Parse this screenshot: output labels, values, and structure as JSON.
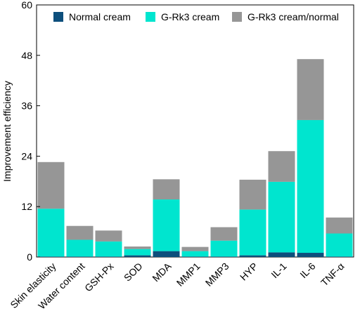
{
  "chart_data": {
    "type": "bar",
    "stacked": true,
    "title": "",
    "xlabel": "",
    "ylabel": "Improvement efficiency",
    "ylim": [
      0,
      60
    ],
    "yticks": [
      0,
      12,
      24,
      36,
      48,
      60
    ],
    "grid": false,
    "legend_position": "top",
    "categories": [
      "Skin elasticity",
      "Water content",
      "GSH-Px",
      "SOD",
      "MDA",
      "MMP1",
      "MMP3",
      "HYP",
      "IL-1",
      "IL-6",
      "TNF-α"
    ],
    "series": [
      {
        "name": "Normal cream",
        "color": "#0d4f7c",
        "values": [
          0.1,
          0.1,
          0.1,
          0.4,
          1.4,
          0.1,
          0.1,
          0.4,
          1.1,
          1.0,
          0.1
        ]
      },
      {
        "name": "G-Rk3 cream",
        "color": "#00e5cf",
        "values": [
          11.4,
          4.0,
          3.6,
          1.5,
          12.3,
          1.3,
          3.8,
          10.9,
          16.8,
          31.6,
          5.5
        ]
      },
      {
        "name": "G-Rk3 cream/normal",
        "color": "#969696",
        "values": [
          11.1,
          3.3,
          2.6,
          0.6,
          4.8,
          1.0,
          3.2,
          7.1,
          7.3,
          14.5,
          3.8
        ]
      }
    ]
  }
}
